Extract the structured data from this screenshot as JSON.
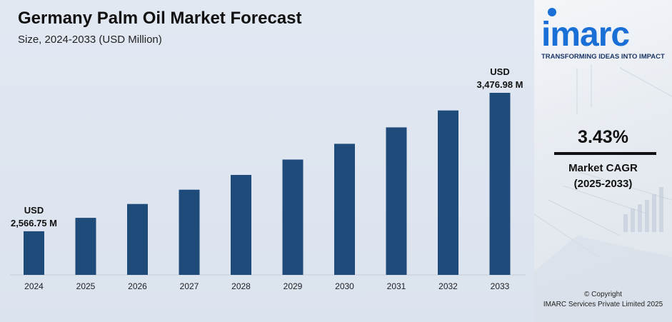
{
  "header": {
    "title": "Germany Palm Oil Market Forecast",
    "subtitle": "Size, 2024-2033 (USD Million)"
  },
  "chart_data": {
    "type": "bar",
    "title": "Germany Palm Oil Market Forecast",
    "subtitle": "Size, 2024-2033 (USD Million)",
    "categories": [
      "2024",
      "2025",
      "2026",
      "2027",
      "2028",
      "2029",
      "2030",
      "2031",
      "2032",
      "2033"
    ],
    "values": [
      2566.75,
      2655,
      2746,
      2840,
      2937,
      3038,
      3142,
      3250,
      3361,
      3476.98
    ],
    "ylim": [
      2280,
      3700
    ],
    "bar_color": "#1f4b7a",
    "grid": false,
    "annotations": [
      {
        "category": "2024",
        "line1": "USD",
        "line2": "2,566.75 M"
      },
      {
        "category": "2033",
        "line1": "USD",
        "line2": "3,476.98 M"
      }
    ]
  },
  "brand": {
    "name": "imarc",
    "tagline": "TRANSFORMING IDEAS INTO IMPACT",
    "accent": "#1a6fd6"
  },
  "cagr": {
    "value": "3.43%",
    "label": "Market CAGR",
    "period": "(2025-2033)"
  },
  "footer": {
    "copyright": "© Copyright",
    "company": "IMARC Services Private Limited 2025"
  }
}
